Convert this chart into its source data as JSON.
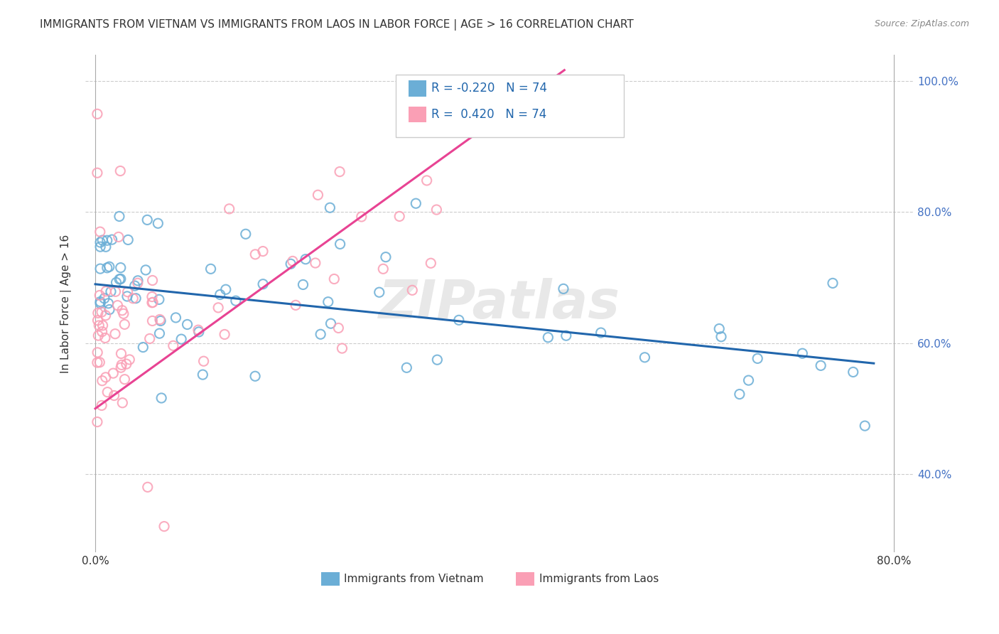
{
  "title": "IMMIGRANTS FROM VIETNAM VS IMMIGRANTS FROM LAOS IN LABOR FORCE | AGE > 16 CORRELATION CHART",
  "source": "Source: ZipAtlas.com",
  "ylabel": "In Labor Force | Age > 16",
  "legend_label_blue": "Immigrants from Vietnam",
  "legend_label_pink": "Immigrants from Laos",
  "R_blue": -0.22,
  "N_blue": 74,
  "R_pink": 0.42,
  "N_pink": 74,
  "blue_color": "#6baed6",
  "pink_color": "#fa9fb5",
  "blue_line_color": "#2166ac",
  "pink_line_color": "#e84393",
  "watermark": "ZIPatlas"
}
